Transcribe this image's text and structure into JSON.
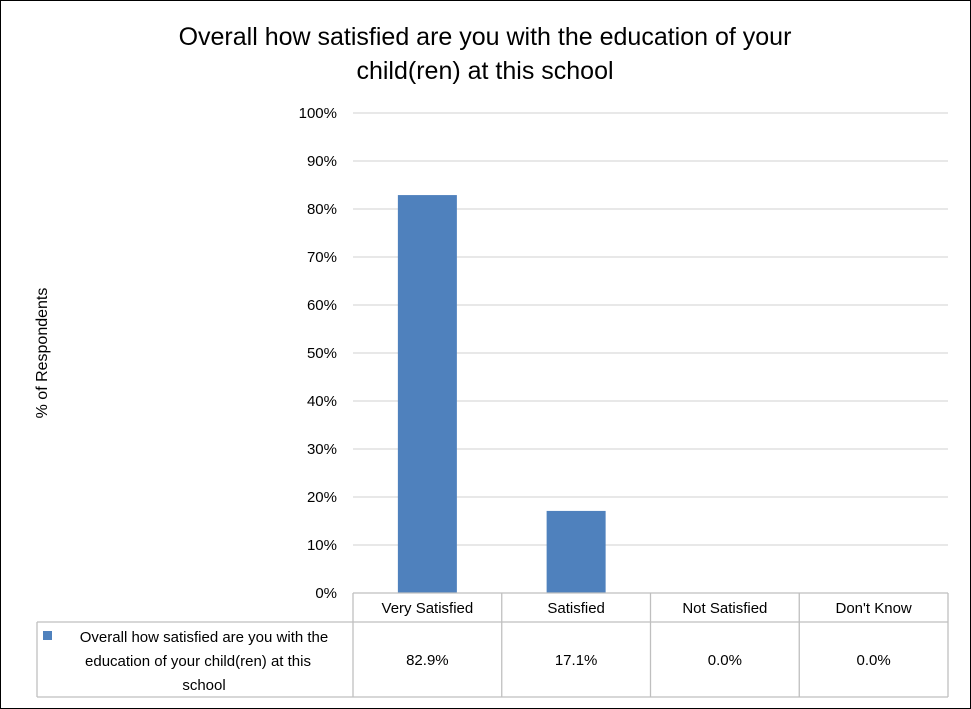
{
  "chart_data": {
    "type": "bar",
    "title": "Overall how satisfied are you with the education of your child(ren) at this school",
    "title_lines": [
      "Overall how satisfied are you with the education of your",
      "child(ren) at this school"
    ],
    "ylabel": "% of Respondents",
    "xlabel": "",
    "categories": [
      "Very Satisfied",
      "Satisfied",
      "Not Satisfied",
      "Don't Know"
    ],
    "series": [
      {
        "name": "Overall how satisfied are you with the education of your child(ren) at this school",
        "name_lines": [
          "Overall how satisfied are you with the",
          "education of your child(ren) at this",
          "school"
        ],
        "values": [
          82.9,
          17.1,
          0.0,
          0.0
        ],
        "labels": [
          "82.9%",
          "17.1%",
          "0.0%",
          "0.0%"
        ],
        "color": "#4f81bd"
      }
    ],
    "ylim": [
      0,
      100
    ],
    "yticks": [
      0,
      10,
      20,
      30,
      40,
      50,
      60,
      70,
      80,
      90,
      100
    ],
    "ytick_labels": [
      "0%",
      "10%",
      "20%",
      "30%",
      "40%",
      "50%",
      "60%",
      "70%",
      "80%",
      "90%",
      "100%"
    ],
    "grid": true,
    "legend": "data-table",
    "colors": {
      "bar": "#4f81bd",
      "grid": "#d9d9d9",
      "table_border": "#bfbfbf"
    }
  }
}
